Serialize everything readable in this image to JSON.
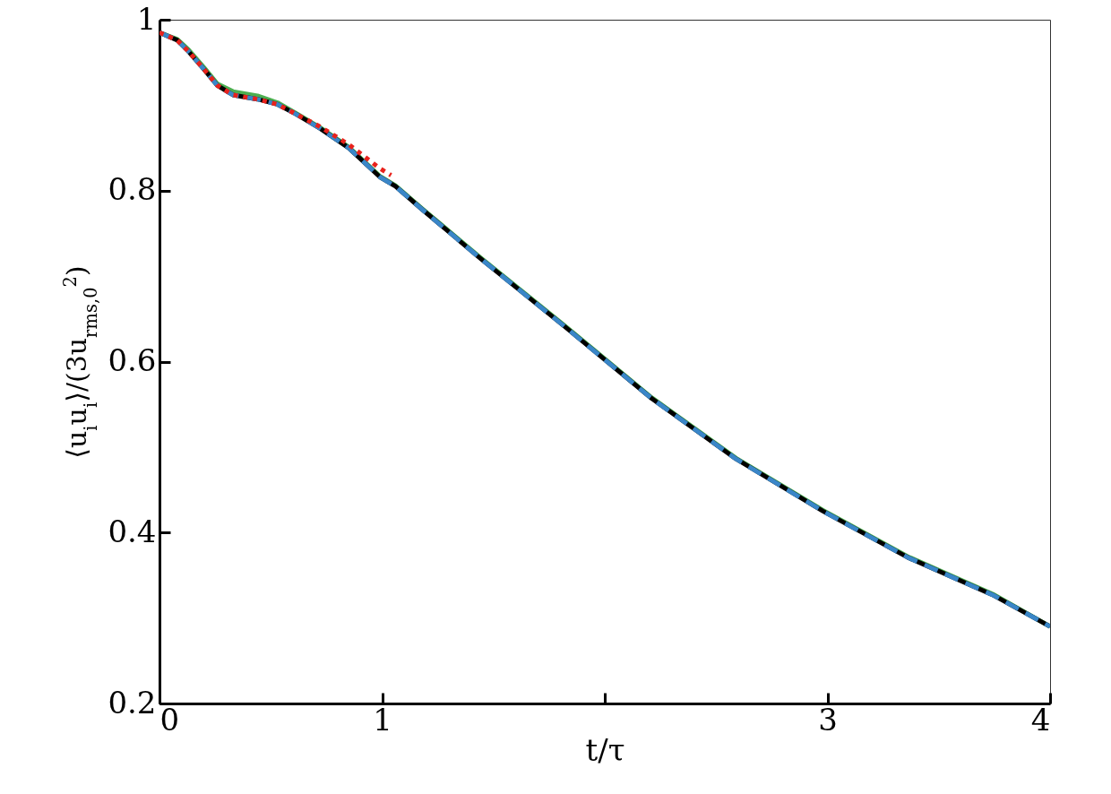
{
  "chart_data": {
    "type": "line",
    "xlabel": "t/τ",
    "ylabel": "⟨u$_{i}$u$_{i}$⟩/(3u$_{rms,0}$$^{2}$)",
    "x": [
      0,
      0.08,
      0.13,
      0.2,
      0.26,
      0.33,
      0.44,
      0.53,
      0.61,
      0.72,
      0.85,
      0.99,
      1.06,
      1.18,
      1.44,
      1.82,
      2.21,
      2.59,
      2.98,
      3.36,
      3.75,
      4
    ],
    "xlim": [
      0,
      4
    ],
    "xticks": [
      0,
      1,
      {
        "value": 2,
        "label": null
      },
      3,
      4
    ],
    "ylim": [
      0.2,
      1
    ],
    "yticks": [
      0.2,
      0.4,
      0.6,
      0.8,
      1
    ],
    "series": [
      {
        "color": "#4caf50",
        "line_style": "solid",
        "values": [
          0.985,
          0.977,
          0.965,
          0.944,
          0.925,
          0.916,
          0.911,
          0.903,
          0.891,
          0.874,
          0.851,
          0.817,
          0.806,
          0.779,
          0.722,
          0.642,
          0.558,
          0.487,
          0.426,
          0.372,
          0.327,
          0.29
        ]
      },
      {
        "color": "#000000",
        "line_style": "solid",
        "values": [
          0.985,
          0.976,
          0.963,
          0.942,
          0.923,
          0.912,
          0.907,
          0.901,
          0.89,
          0.873,
          0.85,
          0.816,
          0.805,
          0.778,
          0.721,
          0.641,
          0.557,
          0.486,
          0.425,
          0.371,
          0.326,
          0.29
        ]
      },
      {
        "color": "#3a86c8",
        "line_style": "dashed",
        "values": [
          0.985,
          0.976,
          0.963,
          0.942,
          0.923,
          0.912,
          0.907,
          0.901,
          0.89,
          0.873,
          0.85,
          0.816,
          0.805,
          0.778,
          0.721,
          0.641,
          0.557,
          0.486,
          0.425,
          0.371,
          0.326,
          0.29
        ]
      },
      {
        "color": "#e8221c",
        "line_style": "dotted",
        "x": [
          0,
          0.08,
          0.13,
          0.2,
          0.26,
          0.33,
          0.44,
          0.53,
          0.61,
          0.72,
          0.85,
          0.99,
          1.04
        ],
        "values": [
          0.985,
          0.976,
          0.963,
          0.942,
          0.923,
          0.912,
          0.907,
          0.901,
          0.89,
          0.875,
          0.854,
          0.826,
          0.818
        ]
      }
    ]
  }
}
